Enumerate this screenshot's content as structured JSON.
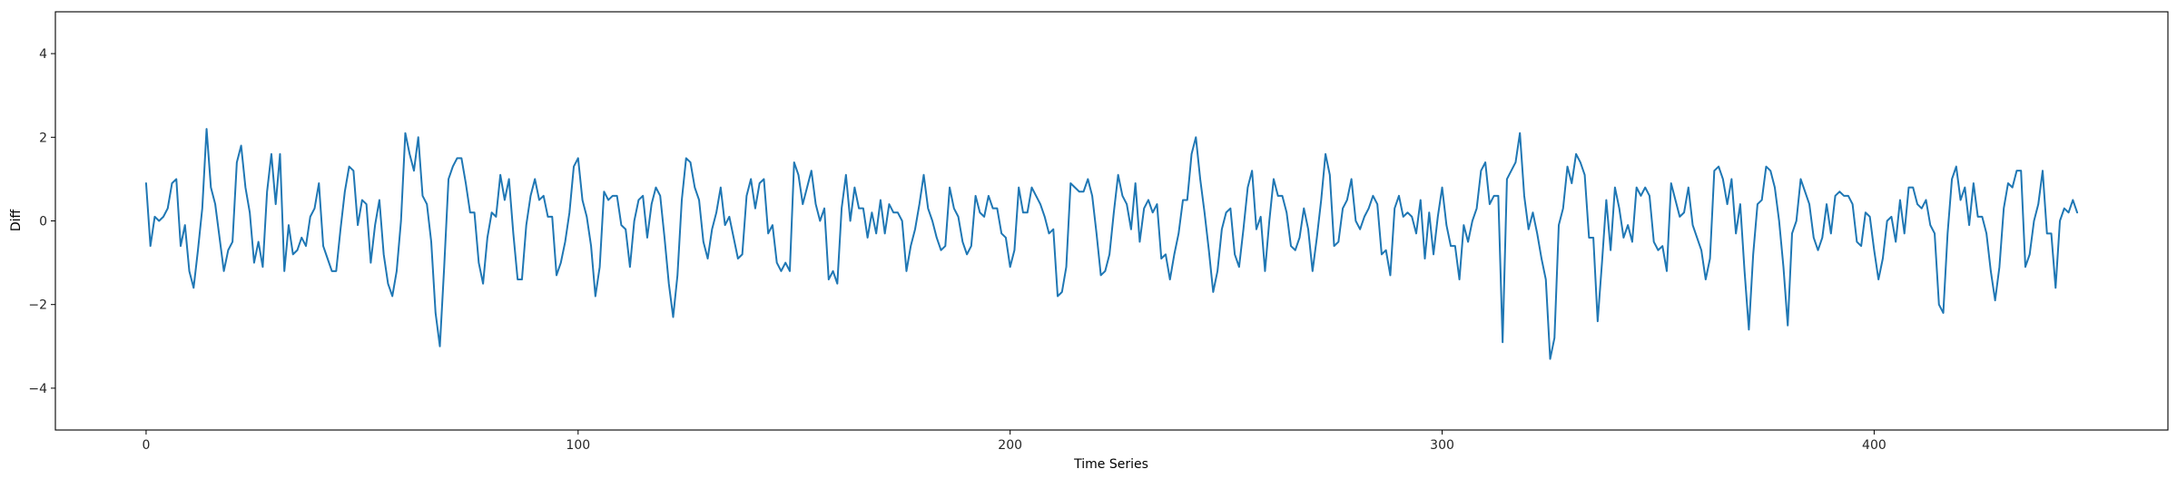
{
  "chart_data": {
    "type": "line",
    "title": "",
    "xlabel": "Time Series",
    "ylabel": "Diff",
    "xlim": [
      -21,
      468
    ],
    "ylim": [
      -5,
      5
    ],
    "xticks": [
      0,
      100,
      200,
      300,
      400
    ],
    "yticks": [
      -4,
      -2,
      0,
      2,
      4
    ],
    "xtick_labels": [
      "0",
      "100",
      "200",
      "300",
      "400"
    ],
    "ytick_labels": [
      "−4",
      "−2",
      "0",
      "2",
      "4"
    ],
    "grid": false,
    "line_color": "#1f77b4",
    "series": [
      {
        "x_start": 0,
        "x_step": 1,
        "values": [
          0.9,
          -0.6,
          0.1,
          0.0,
          0.1,
          0.3,
          0.9,
          1.0,
          -0.6,
          -0.1,
          -1.2,
          -1.6,
          -0.7,
          0.3,
          2.2,
          0.8,
          0.4,
          -0.4,
          -1.2,
          -0.7,
          -0.5,
          1.4,
          1.8,
          0.8,
          0.2,
          -1.0,
          -0.5,
          -1.1,
          0.7,
          1.6,
          0.4,
          1.6,
          -1.2,
          -0.1,
          -0.8,
          -0.7,
          -0.4,
          -0.6,
          0.1,
          0.3,
          0.9,
          -0.6,
          -0.9,
          -1.2,
          -1.2,
          -0.2,
          0.7,
          1.3,
          1.2,
          -0.1,
          0.5,
          0.4,
          -1.0,
          -0.1,
          0.5,
          -0.8,
          -1.5,
          -1.8,
          -1.2,
          0.0,
          2.1,
          1.6,
          1.2,
          2.0,
          0.6,
          0.4,
          -0.5,
          -2.2,
          -3.0,
          -1.1,
          1.0,
          1.3,
          1.5,
          1.5,
          0.9,
          0.2,
          0.2,
          -1.0,
          -1.5,
          -0.4,
          0.2,
          0.1,
          1.1,
          0.5,
          1.0,
          -0.3,
          -1.4,
          -1.4,
          -0.1,
          0.6,
          1.0,
          0.5,
          0.6,
          0.1,
          0.1,
          -1.3,
          -1.0,
          -0.5,
          0.2,
          1.3,
          1.5,
          0.5,
          0.1,
          -0.6,
          -1.8,
          -1.1,
          0.7,
          0.5,
          0.6,
          0.6,
          -0.1,
          -0.2,
          -1.1,
          0.0,
          0.5,
          0.6,
          -0.4,
          0.4,
          0.8,
          0.6,
          -0.4,
          -1.5,
          -2.3,
          -1.3,
          0.5,
          1.5,
          1.4,
          0.8,
          0.5,
          -0.5,
          -0.9,
          -0.2,
          0.2,
          0.8,
          -0.1,
          0.1,
          -0.4,
          -0.9,
          -0.8,
          0.6,
          1.0,
          0.3,
          0.9,
          1.0,
          -0.3,
          -0.1,
          -1.0,
          -1.2,
          -1.0,
          -1.2,
          1.4,
          1.1,
          0.4,
          0.8,
          1.2,
          0.4,
          0.0,
          0.3,
          -1.4,
          -1.2,
          -1.5,
          0.3,
          1.1,
          0.0,
          0.8,
          0.3,
          0.3,
          -0.4,
          0.2,
          -0.3,
          0.5,
          -0.3,
          0.4,
          0.2,
          0.2,
          0.0,
          -1.2,
          -0.6,
          -0.2,
          0.4,
          1.1,
          0.3,
          0.0,
          -0.4,
          -0.7,
          -0.6,
          0.8,
          0.3,
          0.1,
          -0.5,
          -0.8,
          -0.6,
          0.6,
          0.2,
          0.1,
          0.6,
          0.3,
          0.3,
          -0.3,
          -0.4,
          -1.1,
          -0.7,
          0.8,
          0.2,
          0.2,
          0.8,
          0.6,
          0.4,
          0.1,
          -0.3,
          -0.2,
          -1.8,
          -1.7,
          -1.1,
          0.9,
          0.8,
          0.7,
          0.7,
          1.0,
          0.6,
          -0.3,
          -1.3,
          -1.2,
          -0.8,
          0.2,
          1.1,
          0.6,
          0.4,
          -0.2,
          0.9,
          -0.5,
          0.3,
          0.5,
          0.2,
          0.4,
          -0.9,
          -0.8,
          -1.4,
          -0.8,
          -0.3,
          0.5,
          0.5,
          1.6,
          2.0,
          1.0,
          0.2,
          -0.7,
          -1.7,
          -1.2,
          -0.2,
          0.2,
          0.3,
          -0.8,
          -1.1,
          -0.2,
          0.8,
          1.2,
          -0.2,
          0.1,
          -1.2,
          0.0,
          1.0,
          0.6,
          0.6,
          0.2,
          -0.6,
          -0.7,
          -0.4,
          0.3,
          -0.2,
          -1.2,
          -0.4,
          0.5,
          1.6,
          1.1,
          -0.6,
          -0.5,
          0.3,
          0.5,
          1.0,
          0.0,
          -0.2,
          0.1,
          0.3,
          0.6,
          0.4,
          -0.8,
          -0.7,
          -1.3,
          0.3,
          0.6,
          0.1,
          0.2,
          0.1,
          -0.3,
          0.5,
          -0.9,
          0.2,
          -0.8,
          0.1,
          0.8,
          -0.1,
          -0.6,
          -0.6,
          -1.4,
          -0.1,
          -0.5,
          0.0,
          0.3,
          1.2,
          1.4,
          0.4,
          0.6,
          0.6,
          -2.9,
          1.0,
          1.2,
          1.4,
          2.1,
          0.6,
          -0.2,
          0.2,
          -0.3,
          -0.9,
          -1.4,
          -3.3,
          -2.8,
          -0.1,
          0.3,
          1.3,
          0.9,
          1.6,
          1.4,
          1.1,
          -0.4,
          -0.4,
          -2.4,
          -1.0,
          0.5,
          -0.7,
          0.8,
          0.3,
          -0.4,
          -0.1,
          -0.5,
          0.8,
          0.6,
          0.8,
          0.6,
          -0.5,
          -0.7,
          -0.6,
          -1.2,
          0.9,
          0.5,
          0.1,
          0.2,
          0.8,
          -0.1,
          -0.4,
          -0.7,
          -1.4,
          -0.9,
          1.2,
          1.3,
          1.0,
          0.4,
          1.0,
          -0.3,
          0.4,
          -1.2,
          -2.6,
          -0.8,
          0.4,
          0.5,
          1.3,
          1.2,
          0.8,
          0.0,
          -1.1,
          -2.5,
          -0.3,
          0.0,
          1.0,
          0.7,
          0.4,
          -0.4,
          -0.7,
          -0.4,
          0.4,
          -0.3,
          0.6,
          0.7,
          0.6,
          0.6,
          0.4,
          -0.5,
          -0.6,
          0.2,
          0.1,
          -0.7,
          -1.4,
          -0.9,
          0.0,
          0.1,
          -0.5,
          0.5,
          -0.3,
          0.8,
          0.8,
          0.4,
          0.3,
          0.5,
          -0.1,
          -0.3,
          -2.0,
          -2.2,
          -0.3,
          1.0,
          1.3,
          0.5,
          0.8,
          -0.1,
          0.9,
          0.1,
          0.1,
          -0.3,
          -1.2,
          -1.9,
          -1.1,
          0.3,
          0.9,
          0.8,
          1.2,
          1.2,
          -1.1,
          -0.8,
          0.0,
          0.4,
          1.2,
          -0.3,
          -0.3,
          -1.6,
          0.0,
          0.3,
          0.2,
          0.5,
          0.2
        ]
      }
    ]
  }
}
